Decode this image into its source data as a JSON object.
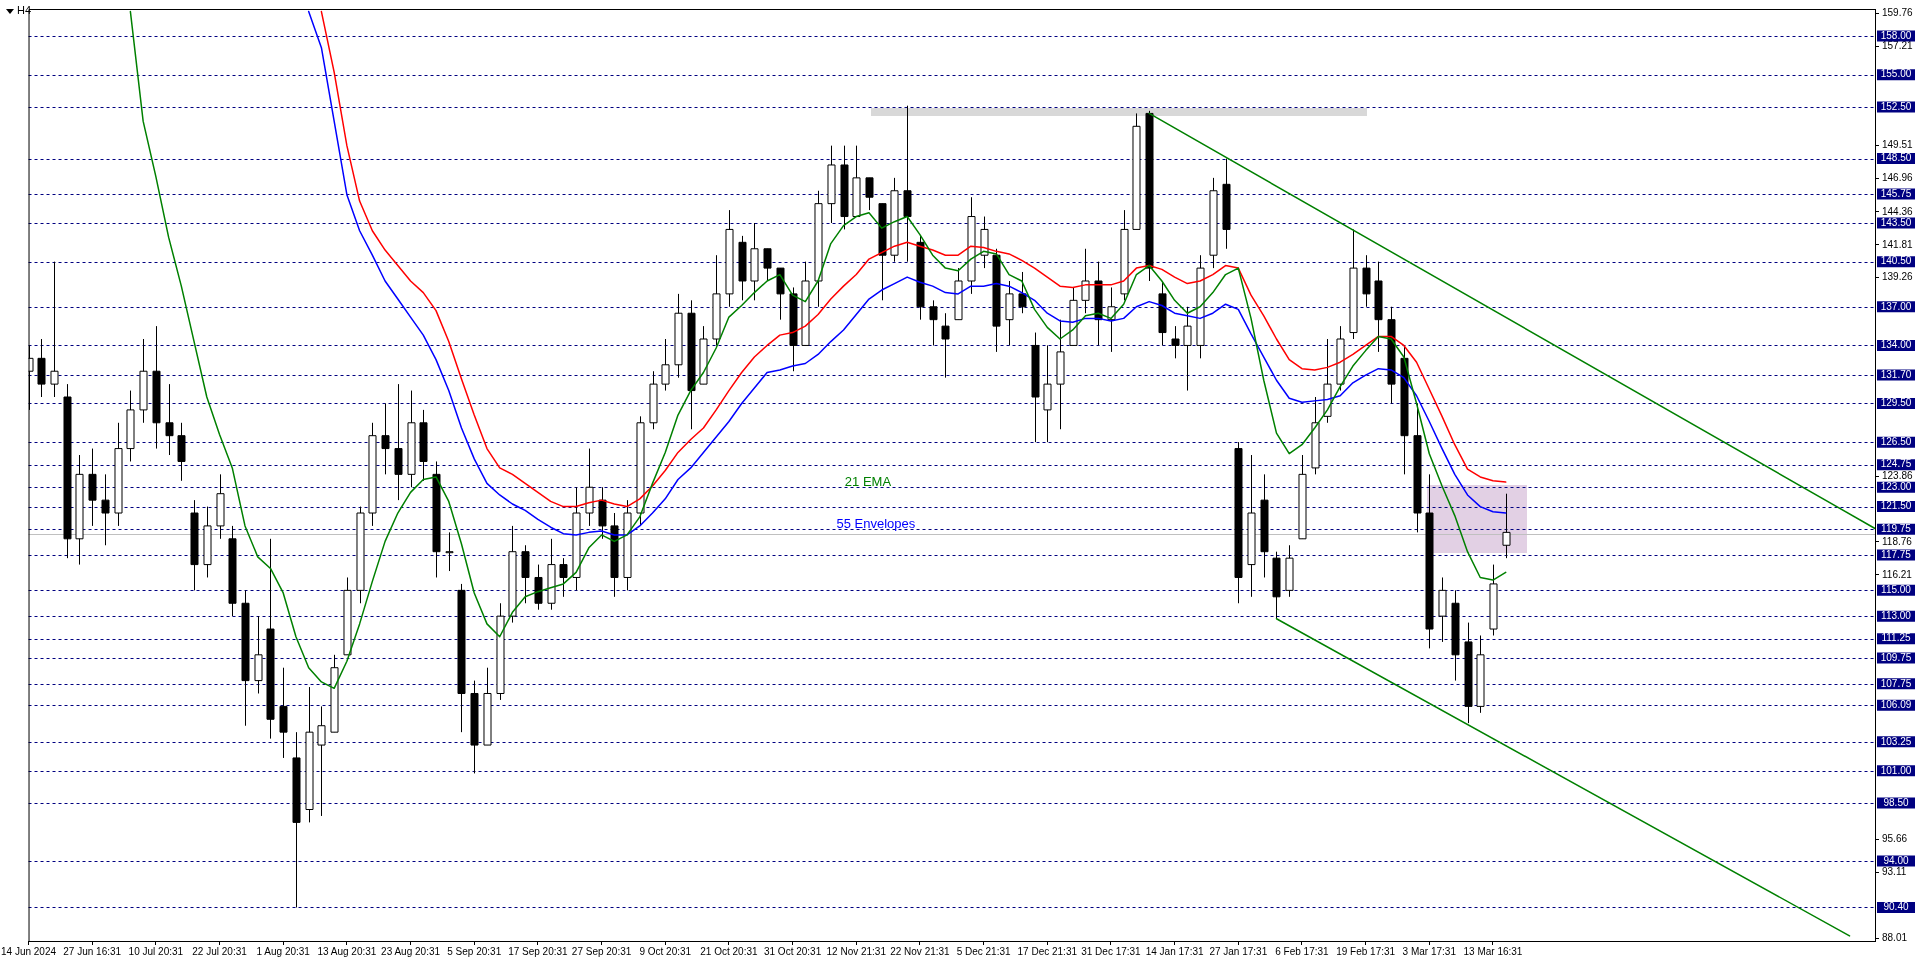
{
  "chart_data": {
    "type": "candlestick",
    "title": "H4",
    "categories": [
      "14 Jun 2024",
      null,
      null,
      null,
      null,
      "27 Jun 16:31",
      null,
      null,
      null,
      null,
      "10 Jul 20:31",
      null,
      null,
      null,
      null,
      "22 Jul 20:31",
      null,
      null,
      null,
      null,
      "1 Aug 20:31",
      null,
      null,
      null,
      null,
      "13 Aug 20:31",
      null,
      null,
      null,
      null,
      "23 Aug 20:31",
      null,
      null,
      null,
      null,
      "5 Sep 20:31",
      null,
      null,
      null,
      null,
      "17 Sep 20:31",
      null,
      null,
      null,
      null,
      "27 Sep 20:31",
      null,
      null,
      null,
      null,
      "9 Oct 20:31",
      null,
      null,
      null,
      null,
      "21 Oct 20:31",
      null,
      null,
      null,
      null,
      "31 Oct 20:31",
      null,
      null,
      null,
      null,
      "12 Nov 21:31",
      null,
      null,
      null,
      null,
      "22 Nov 21:31",
      null,
      null,
      null,
      null,
      "5 Dec 21:31",
      null,
      null,
      null,
      null,
      "17 Dec 21:31",
      null,
      null,
      null,
      null,
      "31 Dec 17:31",
      null,
      null,
      null,
      null,
      "14 Jan 17:31",
      null,
      null,
      null,
      null,
      "27 Jan 17:31",
      null,
      null,
      null,
      null,
      "6 Feb 17:31",
      null,
      null,
      null,
      null,
      "19 Feb 17:31",
      null,
      null,
      null,
      null,
      "3 Mar 17:31",
      null,
      null,
      null,
      null,
      "13 Mar 16:31",
      null,
      null,
      null,
      null,
      null,
      null,
      null,
      null,
      null,
      null,
      null,
      null,
      null,
      null,
      null,
      null,
      null,
      null,
      null,
      null,
      null,
      null,
      null,
      null,
      null,
      null,
      null,
      null,
      null,
      null
    ],
    "ohlc": [
      [
        132,
        134,
        129,
        133
      ],
      [
        133,
        134.5,
        130,
        131
      ],
      [
        131,
        140.5,
        130,
        132
      ],
      [
        130,
        131,
        117.5,
        119
      ],
      [
        119,
        125.5,
        117,
        124
      ],
      [
        124,
        126,
        120,
        122
      ],
      [
        122,
        124,
        118.5,
        121
      ],
      [
        121,
        128,
        120,
        126
      ],
      [
        126,
        130.5,
        125,
        129
      ],
      [
        129,
        134.5,
        128,
        132
      ],
      [
        132,
        135.5,
        126,
        128
      ],
      [
        128,
        131,
        125.5,
        127
      ],
      [
        127,
        128,
        123.5,
        125
      ],
      [
        121,
        122,
        115,
        117
      ],
      [
        117,
        121.5,
        116,
        120
      ],
      [
        120,
        124,
        119,
        122.5
      ],
      [
        119,
        120,
        113,
        114
      ],
      [
        114,
        115,
        104.5,
        108
      ],
      [
        108,
        113,
        107,
        110
      ],
      [
        112,
        119,
        103.5,
        105
      ],
      [
        106,
        109,
        102,
        104
      ],
      [
        102,
        104,
        90.4,
        97
      ],
      [
        98,
        107.5,
        97,
        104
      ],
      [
        103,
        106,
        97.5,
        104.5
      ],
      [
        104,
        110,
        104,
        109
      ],
      [
        110,
        116,
        110,
        115
      ],
      [
        115,
        121.5,
        114,
        121
      ],
      [
        121,
        128,
        120,
        127
      ],
      [
        127,
        129.5,
        124,
        126
      ],
      [
        126,
        131,
        122,
        124
      ],
      [
        124,
        130.5,
        123,
        128
      ],
      [
        128,
        129,
        123.5,
        125
      ],
      [
        124,
        125,
        116,
        118
      ],
      [
        118,
        119.5,
        116.5,
        118
      ],
      [
        115,
        115.5,
        104,
        107
      ],
      [
        107,
        108,
        100.8,
        103
      ],
      [
        103,
        109,
        103,
        107
      ],
      [
        107,
        114,
        106.5,
        113
      ],
      [
        113,
        120,
        112.5,
        118
      ],
      [
        118,
        118.5,
        114,
        116
      ],
      [
        116,
        117,
        113.5,
        114
      ],
      [
        114,
        119,
        113.5,
        117
      ],
      [
        117,
        117.5,
        114.5,
        116
      ],
      [
        116,
        123,
        115,
        121
      ],
      [
        121,
        126,
        120,
        123
      ],
      [
        122,
        123,
        119,
        120
      ],
      [
        120,
        121,
        114.5,
        116
      ],
      [
        116,
        122,
        115,
        121
      ],
      [
        121,
        128.5,
        120,
        128
      ],
      [
        128,
        132,
        127.5,
        131
      ],
      [
        131,
        134.5,
        130.5,
        132.5
      ],
      [
        132.5,
        138,
        131.5,
        136.5
      ],
      [
        136.5,
        137.5,
        127.5,
        130.5
      ],
      [
        131,
        135.5,
        131,
        134.5
      ],
      [
        134.5,
        141,
        134,
        138
      ],
      [
        138,
        144.5,
        137,
        143
      ],
      [
        142,
        142.5,
        137.5,
        139
      ],
      [
        139,
        143.5,
        137.5,
        141.5
      ],
      [
        141.5,
        141.5,
        139,
        140
      ],
      [
        140,
        140,
        136,
        138
      ],
      [
        138,
        138.5,
        132,
        134
      ],
      [
        134,
        140.5,
        134,
        139
      ],
      [
        139,
        146,
        137,
        145
      ],
      [
        145,
        149.5,
        143.5,
        148
      ],
      [
        148,
        149.5,
        143,
        144
      ],
      [
        144,
        149.5,
        144,
        147
      ],
      [
        147,
        147,
        144.5,
        145.5
      ],
      [
        145,
        145,
        137.5,
        141
      ],
      [
        141,
        147,
        140.5,
        146
      ],
      [
        146,
        152.6,
        140.5,
        144
      ],
      [
        142,
        142.5,
        136,
        137
      ],
      [
        137,
        137.5,
        134,
        136
      ],
      [
        135.5,
        136.5,
        131.5,
        134.5
      ],
      [
        136,
        140,
        136,
        139
      ],
      [
        139,
        145.5,
        138,
        144
      ],
      [
        141,
        144,
        140,
        143
      ],
      [
        141,
        141.5,
        133.5,
        135.5
      ],
      [
        136,
        139,
        134,
        138
      ],
      [
        138,
        139.7,
        136.5,
        137
      ],
      [
        134,
        135,
        126.5,
        130
      ],
      [
        129,
        134,
        126.5,
        131
      ],
      [
        131,
        136,
        127.5,
        133.5
      ],
      [
        134,
        138.5,
        134,
        137.5
      ],
      [
        137.5,
        141.5,
        136.5,
        139
      ],
      [
        139,
        140.5,
        134,
        136
      ],
      [
        136,
        138.5,
        133.5,
        137
      ],
      [
        138,
        144.5,
        137.5,
        143
      ],
      [
        143,
        152,
        143,
        151
      ],
      [
        152,
        152.2,
        139,
        140
      ],
      [
        138,
        139,
        134,
        135
      ],
      [
        134.5,
        135.5,
        133,
        134
      ],
      [
        134,
        137,
        130.5,
        135.5
      ],
      [
        134,
        141,
        133,
        140
      ],
      [
        141,
        147,
        140,
        146
      ],
      [
        146.5,
        148.5,
        141.5,
        143
      ],
      [
        126,
        126.5,
        114,
        116
      ],
      [
        117,
        125.5,
        114.5,
        121
      ],
      [
        122,
        124,
        116,
        118
      ],
      [
        117.5,
        118,
        112.8,
        114.5
      ],
      [
        115,
        118.5,
        114.5,
        117.5
      ],
      [
        119,
        125.5,
        119,
        124
      ],
      [
        124.5,
        130,
        124,
        128
      ],
      [
        128.5,
        134.5,
        128,
        131
      ],
      [
        131,
        135.5,
        130.5,
        134.5
      ],
      [
        135,
        143,
        134.5,
        140
      ],
      [
        140,
        141,
        137,
        138
      ],
      [
        139,
        140.5,
        133.5,
        136
      ],
      [
        136,
        137,
        129.5,
        131
      ],
      [
        133,
        134,
        124,
        127
      ],
      [
        127,
        129.5,
        119.5,
        121
      ],
      [
        121,
        124,
        110.5,
        112
      ],
      [
        113,
        116,
        111,
        115
      ],
      [
        114,
        115,
        108,
        110
      ],
      [
        111,
        112.5,
        104.7,
        106
      ],
      [
        106,
        111.5,
        105.5,
        110
      ],
      [
        112,
        117,
        111.5,
        115.5
      ],
      [
        118.5,
        122.5,
        117.5,
        119.5
      ],
      null,
      null,
      null,
      null,
      null,
      null,
      null,
      null,
      null,
      null,
      null,
      null,
      null,
      null,
      null,
      null,
      null,
      null,
      null,
      null,
      null,
      null,
      null,
      null,
      null,
      null,
      null,
      null,
      null
    ],
    "series": [
      {
        "name": "21 EMA",
        "type": "line",
        "color": "#008000",
        "values": [
          null,
          null,
          null,
          null,
          null,
          null,
          null,
          null,
          159.9,
          151.4,
          147.1,
          142.4,
          138.6,
          134.3,
          130.0,
          127.1,
          124.5,
          120.0,
          117.6,
          116.7,
          114.8,
          111.4,
          109.0,
          107.9,
          107.4,
          109.5,
          112.4,
          115.7,
          118.8,
          121.0,
          122.6,
          123.6,
          123.8,
          121.9,
          118.6,
          114.8,
          112.4,
          111.4,
          113.3,
          114.5,
          114.9,
          115.2,
          115.5,
          116.4,
          118.3,
          119.3,
          118.8,
          119.3,
          120.7,
          123.3,
          125.7,
          128.6,
          130.5,
          131.9,
          133.8,
          136.2,
          137.1,
          138.1,
          139.0,
          139.5,
          137.9,
          137.4,
          139.0,
          141.9,
          143.3,
          144.0,
          144.3,
          143.1,
          143.6,
          144.0,
          142.6,
          141.0,
          140.0,
          139.8,
          140.7,
          141.3,
          141.1,
          139.5,
          139.0,
          136.8,
          135.4,
          134.5,
          135.2,
          136.3,
          136.5,
          136.1,
          137.2,
          139.5,
          140.2,
          139.0,
          137.5,
          136.5,
          137.0,
          138.1,
          139.5,
          140.0,
          136.1,
          131.3,
          127.2,
          125.6,
          126.3,
          127.6,
          129.0,
          130.8,
          132.4,
          133.6,
          134.7,
          134.5,
          133.1,
          129.5,
          125.6,
          123.1,
          120.8,
          118.0,
          116.0,
          115.8,
          116.4,
          null,
          null,
          null,
          null,
          null,
          null,
          null,
          null,
          null,
          null,
          null,
          null,
          null,
          null,
          null,
          null,
          null,
          null,
          null,
          null,
          null,
          null,
          null,
          null,
          null,
          null,
          null,
          null,
          null
        ]
      },
      {
        "name": "55 Envelopes",
        "type": "line",
        "color": "#0000ff",
        "values": [
          null,
          null,
          null,
          null,
          null,
          null,
          null,
          null,
          null,
          null,
          null,
          null,
          null,
          null,
          null,
          null,
          null,
          null,
          null,
          null,
          null,
          null,
          159.9,
          157.1,
          151.4,
          145.7,
          142.9,
          141.0,
          139.0,
          137.6,
          136.2,
          134.8,
          132.9,
          130.5,
          127.6,
          125.2,
          123.3,
          122.4,
          121.7,
          121.2,
          120.5,
          119.9,
          119.4,
          119.3,
          119.5,
          119.6,
          119.3,
          119.3,
          120.0,
          121.0,
          122.1,
          123.6,
          124.5,
          125.7,
          126.9,
          128.1,
          129.5,
          130.7,
          131.9,
          132.1,
          132.4,
          132.6,
          133.3,
          134.3,
          135.2,
          136.4,
          137.6,
          138.3,
          138.8,
          139.3,
          138.9,
          138.6,
          138.1,
          138.0,
          138.6,
          138.6,
          138.8,
          138.6,
          138.1,
          137.5,
          136.5,
          135.9,
          135.8,
          136.1,
          136.1,
          135.9,
          136.1,
          137.0,
          137.4,
          137.1,
          136.5,
          136.3,
          136.1,
          136.5,
          137.2,
          136.8,
          134.9,
          133.1,
          131.3,
          129.9,
          129.6,
          129.7,
          129.8,
          130.1,
          131.1,
          131.7,
          132.2,
          132.1,
          131.5,
          130.1,
          128.1,
          126.0,
          124.0,
          122.4,
          121.5,
          121.1,
          121.0,
          null,
          null,
          null,
          null,
          null,
          null,
          null,
          null,
          null,
          null,
          null,
          null,
          null,
          null,
          null,
          null,
          null,
          null,
          null,
          null,
          null,
          null,
          null,
          null,
          null,
          null,
          null,
          null,
          null
        ]
      },
      {
        "type": "line",
        "color": "#ff0000",
        "values": [
          null,
          null,
          null,
          null,
          null,
          null,
          null,
          null,
          null,
          null,
          null,
          null,
          null,
          null,
          null,
          null,
          null,
          null,
          null,
          null,
          null,
          null,
          null,
          159.9,
          155.2,
          149.5,
          145.2,
          142.9,
          141.4,
          140.2,
          139.0,
          138.1,
          136.7,
          134.3,
          131.4,
          128.6,
          126.0,
          124.5,
          124.0,
          123.3,
          122.6,
          121.9,
          121.5,
          121.5,
          121.8,
          122.0,
          121.7,
          121.5,
          122.1,
          123.1,
          124.3,
          125.7,
          126.7,
          127.6,
          129.0,
          130.5,
          131.9,
          133.1,
          134.0,
          134.8,
          135.0,
          135.5,
          136.4,
          137.6,
          138.6,
          139.5,
          140.7,
          141.2,
          141.7,
          142.0,
          141.7,
          141.4,
          141.0,
          141.0,
          141.7,
          141.6,
          141.3,
          141.1,
          140.6,
          140.0,
          139.3,
          138.6,
          138.5,
          138.7,
          138.7,
          138.7,
          139.0,
          140.0,
          140.2,
          139.9,
          139.3,
          138.8,
          139.0,
          139.5,
          140.2,
          140.0,
          137.9,
          136.3,
          134.5,
          132.9,
          132.2,
          132.1,
          132.3,
          132.7,
          133.3,
          134.0,
          134.7,
          134.7,
          134.0,
          132.7,
          130.6,
          128.5,
          126.3,
          124.4,
          123.8,
          123.5,
          123.4,
          null,
          null,
          null,
          null,
          null,
          null,
          null,
          null,
          null,
          null,
          null,
          null,
          null,
          null,
          null,
          null,
          null,
          null,
          null,
          null,
          null,
          null,
          null,
          null,
          null,
          null,
          null,
          null,
          null
        ]
      },
      {
        "type": "line",
        "color": "#008000",
        "values": [
          null,
          null,
          null,
          null,
          null,
          null,
          null,
          null,
          null,
          null,
          null,
          null,
          null,
          null,
          null,
          null,
          null,
          null,
          null,
          null,
          null,
          null,
          null,
          null,
          null,
          null,
          null,
          null,
          null,
          null,
          null,
          null,
          null,
          null,
          null,
          null,
          null,
          null,
          null,
          null,
          null,
          null,
          null,
          null,
          null,
          null,
          null,
          null,
          null,
          null,
          null,
          null,
          null,
          null,
          null,
          null,
          null,
          null,
          null,
          null,
          null,
          null,
          null,
          null,
          null,
          null,
          null,
          null,
          null,
          null,
          null,
          null,
          null,
          null,
          null,
          null,
          null,
          null,
          null,
          null,
          null,
          null,
          null,
          null,
          null,
          null,
          null,
          null,
          152.0,
          null,
          null,
          null,
          null,
          null,
          null,
          null,
          null,
          null,
          null,
          null,
          null,
          null,
          null,
          null,
          null,
          null,
          null,
          null,
          null,
          null,
          null,
          null,
          null,
          null,
          null,
          null,
          null,
          null,
          null,
          null,
          null,
          null,
          null,
          null,
          null,
          null,
          null,
          null,
          null,
          null,
          null,
          null,
          null,
          null,
          null,
          null,
          null,
          null,
          null,
          null,
          null,
          null,
          null,
          null,
          null,
          119.8
        ]
      },
      {
        "type": "line",
        "color": "#008000",
        "values": [
          null,
          null,
          null,
          null,
          null,
          null,
          null,
          null,
          null,
          null,
          null,
          null,
          null,
          null,
          null,
          null,
          null,
          null,
          null,
          null,
          null,
          null,
          null,
          null,
          null,
          null,
          null,
          null,
          null,
          null,
          null,
          null,
          null,
          null,
          null,
          null,
          null,
          null,
          null,
          null,
          null,
          null,
          null,
          null,
          null,
          null,
          null,
          null,
          null,
          null,
          null,
          null,
          null,
          null,
          null,
          null,
          null,
          null,
          null,
          null,
          null,
          null,
          null,
          null,
          null,
          null,
          null,
          null,
          null,
          null,
          null,
          null,
          null,
          null,
          null,
          null,
          null,
          null,
          null,
          null,
          null,
          null,
          null,
          null,
          null,
          null,
          null,
          null,
          null,
          null,
          null,
          null,
          null,
          null,
          null,
          null,
          null,
          null,
          112.8,
          null,
          null,
          null,
          null,
          null,
          null,
          null,
          null,
          null,
          null,
          null,
          null,
          null,
          null,
          null,
          null,
          null,
          null,
          null,
          null,
          null,
          null,
          null,
          null,
          null,
          null,
          null,
          null,
          null,
          null,
          null,
          null,
          null,
          null,
          null,
          null,
          null,
          null,
          null,
          null,
          null,
          null,
          null,
          null,
          88.2,
          null,
          null
        ]
      }
    ],
    "ylim": [
      87.8,
      160.1
    ],
    "yticks": [
      159.76,
      157.21,
      149.51,
      146.96,
      144.36,
      141.81,
      139.26,
      123.86,
      118.76,
      116.21,
      95.66,
      93.11,
      88.01
    ],
    "ref_lines": [
      {
        "axis": "y",
        "value": 158,
        "label": "158.00",
        "color": "#000080",
        "line_style": "dashed"
      },
      {
        "axis": "y",
        "value": 155,
        "label": "155.00",
        "color": "#000080",
        "line_style": "dashed"
      },
      {
        "axis": "y",
        "value": 152.5,
        "label": "152.50",
        "color": "#000080",
        "line_style": "dashed"
      },
      {
        "axis": "y",
        "value": 148.5,
        "label": "148.50",
        "color": "#000080",
        "line_style": "dashed"
      },
      {
        "axis": "y",
        "value": 145.75,
        "label": "145.75",
        "color": "#000080",
        "line_style": "dashed"
      },
      {
        "axis": "y",
        "value": 143.5,
        "label": "143.50",
        "color": "#000080",
        "line_style": "dashed"
      },
      {
        "axis": "y",
        "value": 140.5,
        "label": "140.50",
        "color": "#000080",
        "line_style": "dashed"
      },
      {
        "axis": "y",
        "value": 137,
        "label": "137.00",
        "color": "#000080",
        "line_style": "dashed"
      },
      {
        "axis": "y",
        "value": 134,
        "label": "134.00",
        "color": "#000080",
        "line_style": "dashed"
      },
      {
        "axis": "y",
        "value": 131.7,
        "label": "131.70",
        "color": "#000080",
        "line_style": "dashed"
      },
      {
        "axis": "y",
        "value": 129.5,
        "label": "129.50",
        "color": "#000080",
        "line_style": "dashed"
      },
      {
        "axis": "y",
        "value": 126.5,
        "label": "126.50",
        "color": "#000080",
        "line_style": "dashed"
      },
      {
        "axis": "y",
        "value": 124.75,
        "label": "124.75",
        "color": "#000080",
        "line_style": "dashed"
      },
      {
        "axis": "y",
        "value": 123,
        "label": "123.00",
        "color": "#000080",
        "line_style": "dashed"
      },
      {
        "axis": "y",
        "value": 121.5,
        "label": "121.50",
        "color": "#000080",
        "line_style": "dashed"
      },
      {
        "axis": "y",
        "value": 119.75,
        "label": "119.75",
        "color": "#000080",
        "line_style": "dashed"
      },
      {
        "axis": "y",
        "value": 117.75,
        "label": "117.75",
        "color": "#000080",
        "line_style": "dashed"
      },
      {
        "axis": "y",
        "value": 115,
        "label": "115.00",
        "color": "#000080",
        "line_style": "dashed"
      },
      {
        "axis": "y",
        "value": 113,
        "label": "113.00",
        "color": "#000080",
        "line_style": "dashed"
      },
      {
        "axis": "y",
        "value": 111.25,
        "label": "111.25",
        "color": "#000080",
        "line_style": "dashed"
      },
      {
        "axis": "y",
        "value": 109.75,
        "label": "109.75",
        "color": "#000080",
        "line_style": "dashed"
      },
      {
        "axis": "y",
        "value": 107.75,
        "label": "107.75",
        "color": "#000080",
        "line_style": "dashed"
      },
      {
        "axis": "y",
        "value": 106.09,
        "label": "106.09",
        "color": "#000080",
        "line_style": "dashed"
      },
      {
        "axis": "y",
        "value": 103.25,
        "label": "103.25",
        "color": "#000080",
        "line_style": "dashed"
      },
      {
        "axis": "y",
        "value": 101,
        "label": "101.00",
        "color": "#000080",
        "line_style": "dashed"
      },
      {
        "axis": "y",
        "value": 98.5,
        "label": "98.50",
        "color": "#000080",
        "line_style": "dashed"
      },
      {
        "axis": "y",
        "value": 94,
        "label": "94.00",
        "color": "#000080",
        "line_style": "dashed"
      },
      {
        "axis": "y",
        "value": 90.4,
        "label": "90.40",
        "color": "#000080",
        "line_style": "dashed"
      },
      {
        "axis": "y",
        "value": 119.4,
        "color": "#c0c0c0",
        "line_style": "solid"
      }
    ]
  }
}
